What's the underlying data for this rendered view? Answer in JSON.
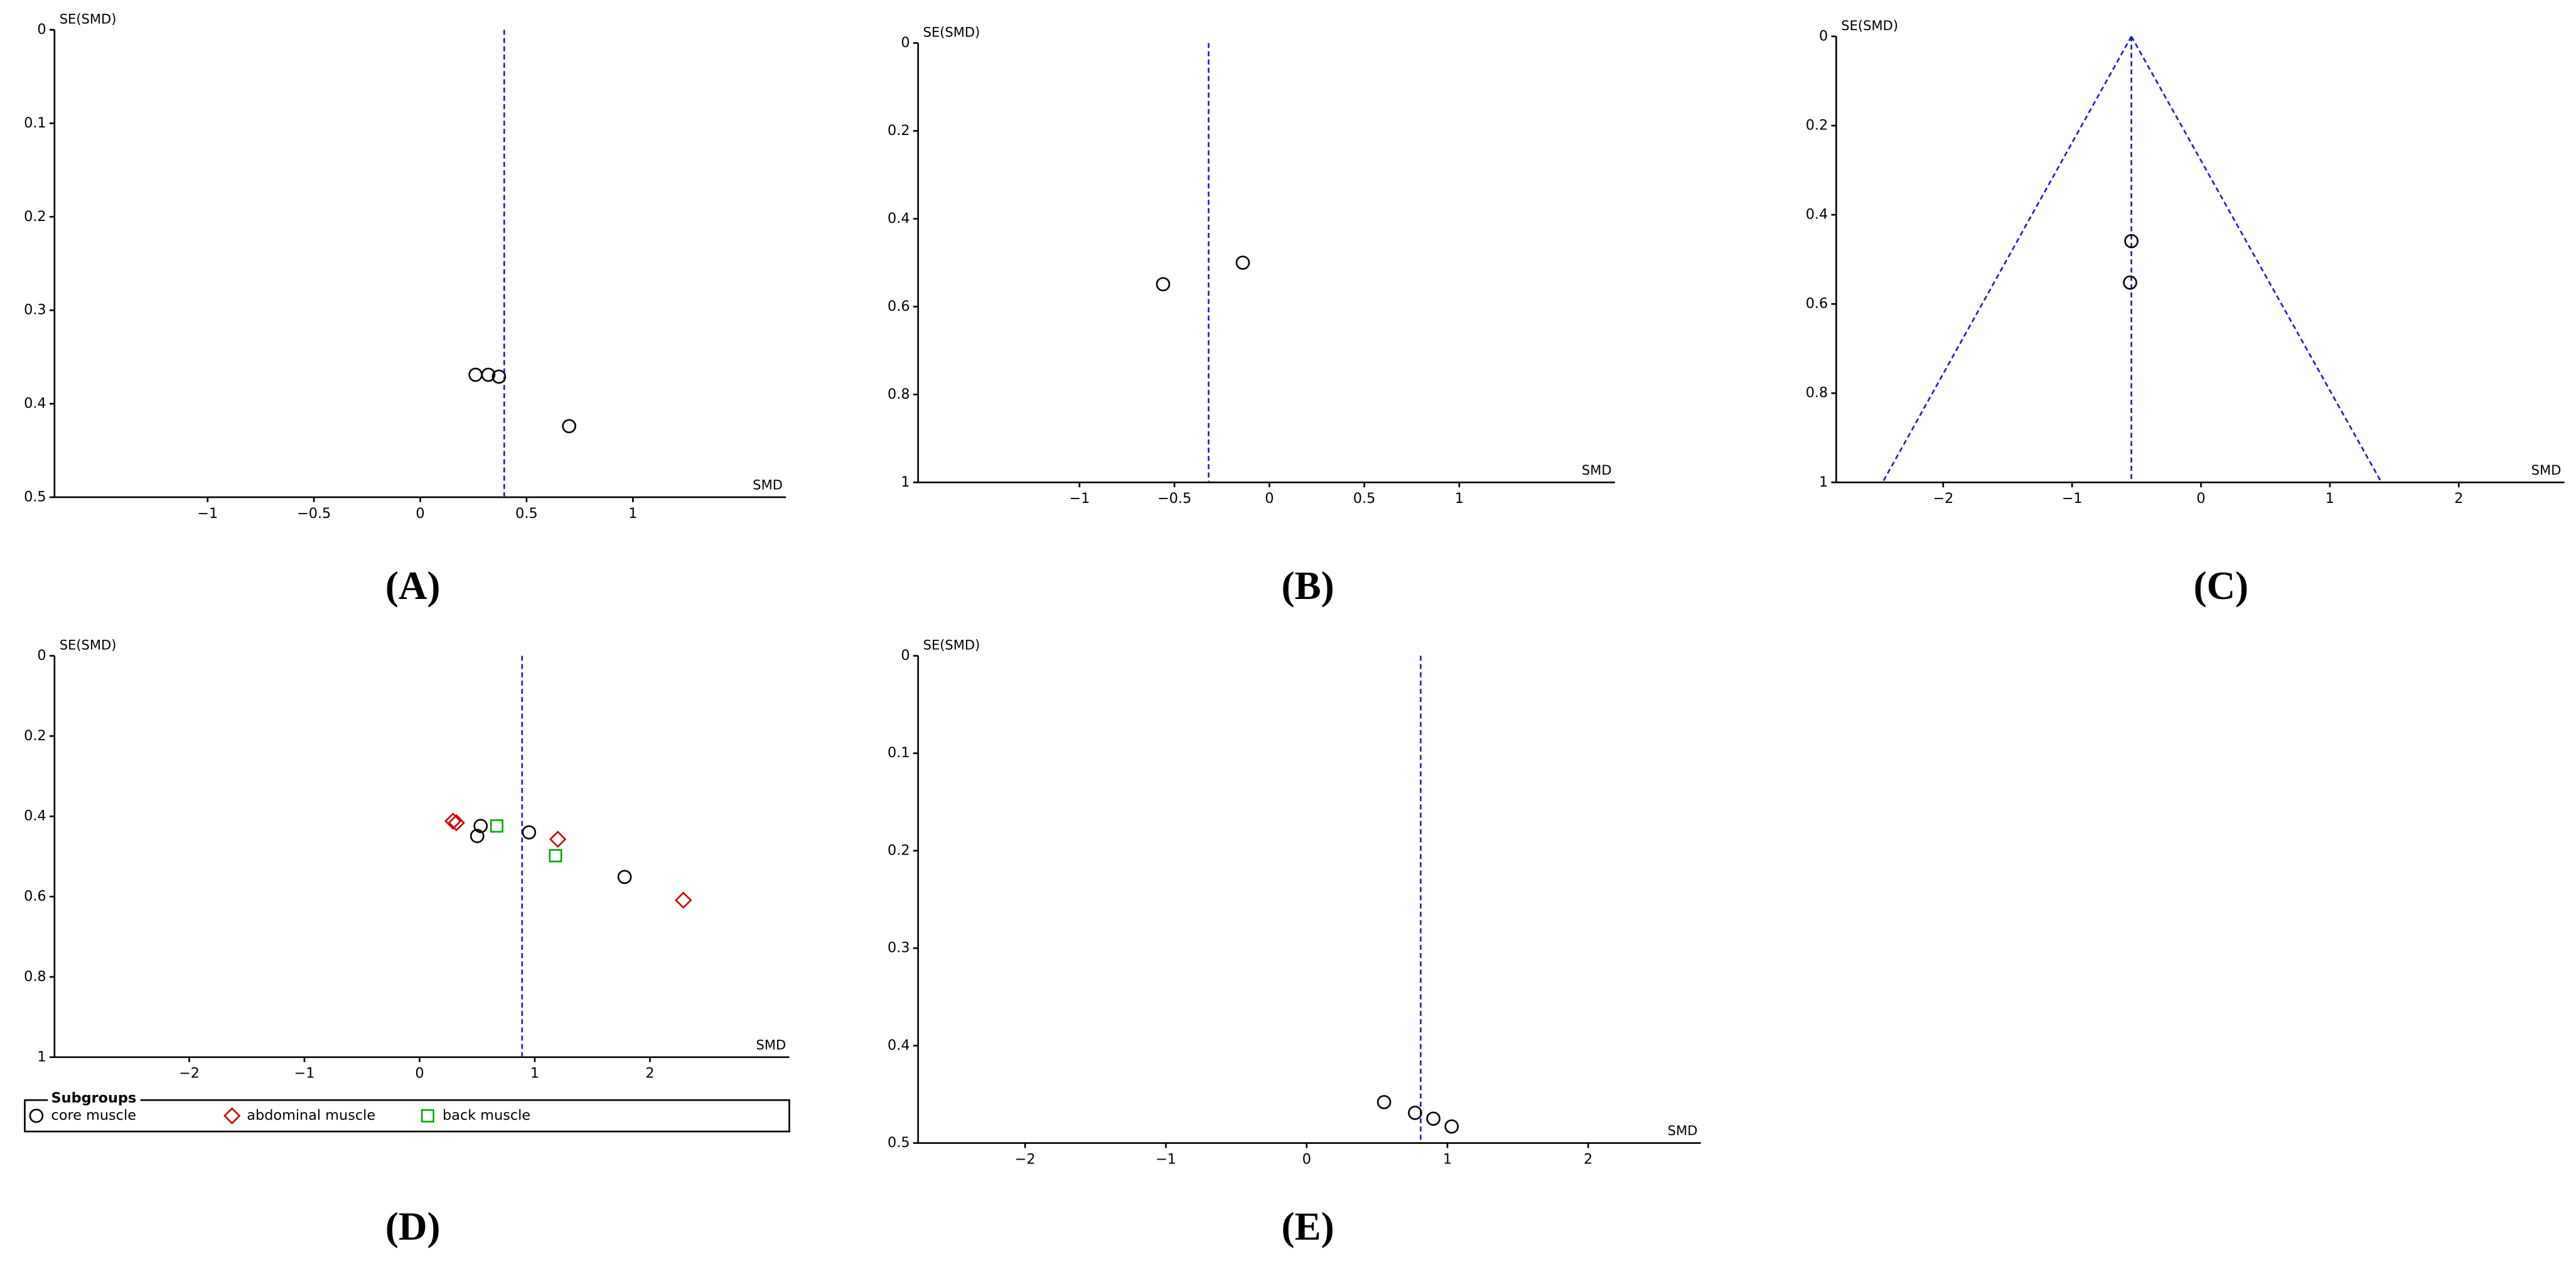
{
  "chart_data": [
    {
      "type": "scatter",
      "panel_label": "(A)",
      "x_label": "SMD",
      "y_label": "SE(SMD)",
      "y_inverted": true,
      "xlim": [
        -1.72,
        1.72
      ],
      "ylim": [
        0,
        0.5
      ],
      "xticks": [
        {
          "value": -1,
          "label": "−1"
        },
        {
          "value": -0.5,
          "label": "−0.5"
        },
        0,
        0.5,
        1
      ],
      "yticks": [
        0,
        0.1,
        0.2,
        0.3,
        0.4,
        0.5
      ],
      "reference_x": 0.395,
      "series": [
        {
          "marker": "circle",
          "color": "#000000",
          "x": [
            0.26,
            0.32,
            0.37,
            0.7
          ],
          "values": [
            0.369,
            0.369,
            0.371,
            0.424
          ]
        }
      ]
    },
    {
      "type": "scatter",
      "panel_label": "(B)",
      "x_label": "SMD",
      "y_label": "SE(SMD)",
      "y_inverted": true,
      "xlim": [
        -1.85,
        1.82
      ],
      "ylim": [
        0,
        1
      ],
      "xticks": [
        {
          "value": -1,
          "label": "−1"
        },
        {
          "value": -0.5,
          "label": "−0.5"
        },
        0,
        0.5,
        1
      ],
      "yticks": [
        0,
        0.2,
        0.4,
        0.6,
        0.8,
        1
      ],
      "reference_x": -0.32,
      "series": [
        {
          "marker": "circle",
          "color": "#000000",
          "x": [
            -0.56,
            -0.14
          ],
          "values": [
            0.549,
            0.5
          ]
        }
      ]
    },
    {
      "type": "scatter",
      "panel_label": "(C)",
      "x_label": "SMD",
      "y_label": "SE(SMD)",
      "y_inverted": true,
      "xlim": [
        -2.83,
        2.82
      ],
      "ylim": [
        0,
        1
      ],
      "xticks": [
        {
          "value": -2,
          "label": "−2"
        },
        {
          "value": -1,
          "label": "−1"
        },
        0,
        1,
        2
      ],
      "yticks": [
        0,
        0.2,
        0.4,
        0.6,
        0.8,
        1
      ],
      "reference_x": -0.54,
      "funnel": [
        -2.47,
        1.4
      ],
      "series": [
        {
          "marker": "circle",
          "color": "#000000",
          "x": [
            -0.54,
            -0.55
          ],
          "values": [
            0.459,
            0.552
          ]
        }
      ]
    },
    {
      "type": "scatter",
      "panel_label": "(D)",
      "x_label": "SMD",
      "y_label": "SE(SMD)",
      "y_inverted": true,
      "xlim": [
        -3.17,
        3.21
      ],
      "ylim": [
        0,
        1
      ],
      "xticks": [
        {
          "value": -2,
          "label": "−2"
        },
        {
          "value": -1,
          "label": "−1"
        },
        0,
        1,
        2
      ],
      "yticks": [
        0,
        0.2,
        0.4,
        0.6,
        0.8,
        1
      ],
      "reference_x": 0.89,
      "legend": {
        "title": "Subgroups",
        "position": "bottom"
      },
      "series": [
        {
          "name": "core muscle",
          "marker": "circle",
          "color": "#000000",
          "x": [
            0.53,
            0.5,
            0.95,
            1.78
          ],
          "values": [
            0.424,
            0.449,
            0.44,
            0.551
          ]
        },
        {
          "name": "abdominal muscle",
          "marker": "diamond",
          "color": "#cc0000",
          "x": [
            0.29,
            0.32,
            1.2,
            2.29
          ],
          "values": [
            0.412,
            0.416,
            0.457,
            0.609
          ]
        },
        {
          "name": "back muscle",
          "marker": "square",
          "color": "#00aa00",
          "x": [
            0.67,
            1.18
          ],
          "values": [
            0.424,
            0.498
          ]
        }
      ]
    },
    {
      "type": "scatter",
      "panel_label": "(E)",
      "x_label": "SMD",
      "y_label": "SE(SMD)",
      "y_inverted": true,
      "xlim": [
        -2.76,
        2.8
      ],
      "ylim": [
        0,
        0.5
      ],
      "xticks": [
        {
          "value": -2,
          "label": "−2"
        },
        {
          "value": -1,
          "label": "−1"
        },
        0,
        1,
        2
      ],
      "yticks": [
        0,
        0.1,
        0.2,
        0.3,
        0.4,
        0.5
      ],
      "reference_x": 0.81,
      "series": [
        {
          "marker": "circle",
          "color": "#000000",
          "x": [
            0.55,
            0.77,
            0.9,
            1.03
          ],
          "values": [
            0.458,
            0.469,
            0.475,
            0.483
          ]
        }
      ]
    }
  ]
}
